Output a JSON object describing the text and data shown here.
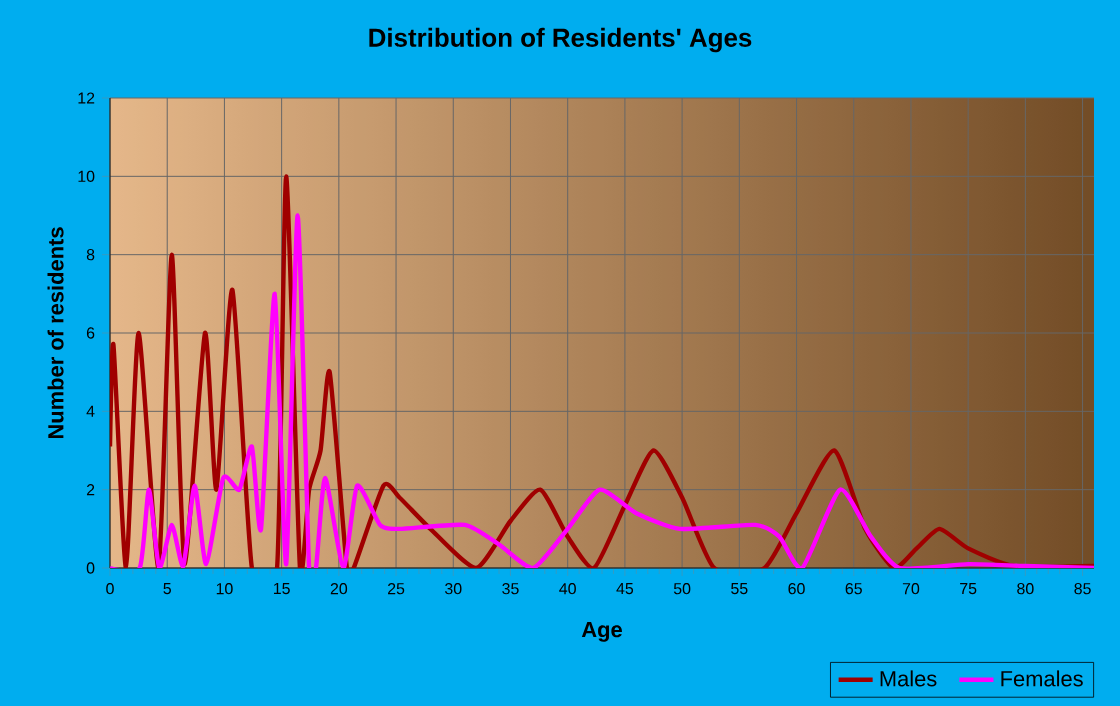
{
  "chart_data": {
    "type": "line",
    "title": "Distribution of Residents' Ages",
    "xlabel": "Age",
    "ylabel": "Number of residents",
    "xlim": [
      0,
      86
    ],
    "xticks": [
      0,
      5,
      10,
      15,
      20,
      25,
      30,
      35,
      40,
      45,
      50,
      55,
      60,
      65,
      70,
      75,
      80,
      85
    ],
    "ylim": [
      0,
      12
    ],
    "yticks": [
      0,
      2,
      4,
      6,
      8,
      10,
      12
    ],
    "grid": true,
    "legend": "bottom right",
    "marker": "none",
    "line_style": "solid",
    "series": [
      {
        "name": "Males",
        "color": "#a00000",
        "x": [
          0,
          0.3,
          1.4,
          2.5,
          4.25,
          5.4,
          6.5,
          8.3,
          9.3,
          10.7,
          12.4,
          14.6,
          15.4,
          16.6,
          17.4,
          18.4,
          19.2,
          20.7,
          21.3,
          23.9,
          25.3,
          28,
          32,
          35,
          37.6,
          40,
          42.3,
          45,
          47.5,
          50,
          52.8,
          57.2,
          60,
          63.3,
          66,
          68.5,
          70.5,
          72.5,
          75,
          79,
          86
        ],
        "values": [
          3.1,
          5.7,
          0,
          6,
          0,
          8,
          0.1,
          6,
          2,
          7.1,
          0,
          0,
          10,
          0,
          2,
          3,
          5,
          0,
          0,
          2.1,
          1.8,
          1,
          0,
          1.2,
          2,
          0.8,
          0,
          1.6,
          3,
          1.8,
          0,
          0,
          1.4,
          3,
          1,
          0,
          0.5,
          1,
          0.5,
          0.05,
          0.05
        ]
      },
      {
        "name": "Females",
        "color": "#ff00ff",
        "x": [
          0,
          2.6,
          3.4,
          4.3,
          5.4,
          6.4,
          7.4,
          8.4,
          9.9,
          11.3,
          12.4,
          13.2,
          14.4,
          15.4,
          16.4,
          17.4,
          18,
          18.8,
          20.4,
          21.6,
          23.6,
          25.3,
          31,
          34,
          37,
          40,
          42.8,
          46,
          49.8,
          56.4,
          58.5,
          60.5,
          63.8,
          66.5,
          69,
          75,
          80,
          86
        ],
        "values": [
          0,
          0,
          2,
          0,
          1.1,
          0.05,
          2.1,
          0.1,
          2.3,
          2,
          3.1,
          1,
          7,
          0.1,
          9,
          0,
          0,
          2.3,
          0,
          2.1,
          1.1,
          1,
          1.1,
          0.6,
          0,
          1,
          2,
          1.4,
          1,
          1.1,
          0.8,
          0,
          2,
          0.8,
          0,
          0.1,
          0.05,
          0
        ]
      }
    ]
  }
}
